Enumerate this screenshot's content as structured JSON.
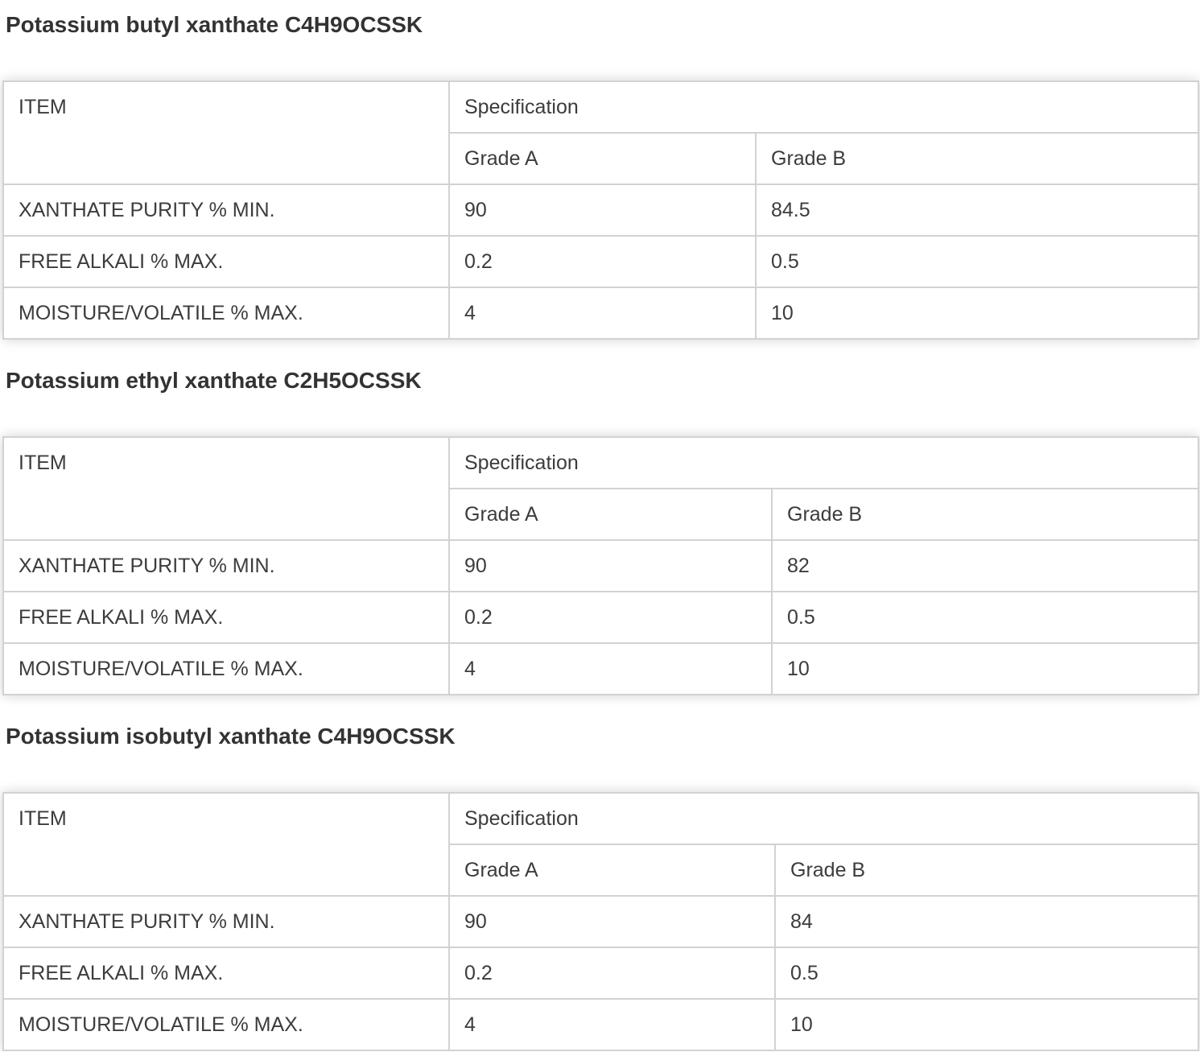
{
  "colors": {
    "border": "#d2d2d2",
    "heading_text": "#333333",
    "cell_text": "#3c3c3c",
    "background": "#ffffff"
  },
  "sections": [
    {
      "heading": "Potassium butyl xanthate C4H9OCSSK",
      "table": {
        "headers": {
          "item": "ITEM",
          "specification": "Specification",
          "grade_a": "Grade A",
          "grade_b": "Grade B"
        },
        "rows": [
          {
            "item": "XANTHATE PURITY % MIN.",
            "grade_a": "90",
            "grade_b": "84.5"
          },
          {
            "item": "FREE ALKALI % MAX.",
            "grade_a": "0.2",
            "grade_b": "0.5"
          },
          {
            "item": "MOISTURE/VOLATILE % MAX.",
            "grade_a": "4",
            "grade_b": "10"
          }
        ]
      }
    },
    {
      "heading": "Potassium ethyl xanthate C2H5OCSSK",
      "table": {
        "headers": {
          "item": "ITEM",
          "specification": "Specification",
          "grade_a": "Grade A",
          "grade_b": "Grade B"
        },
        "rows": [
          {
            "item": "XANTHATE PURITY % MIN.",
            "grade_a": "90",
            "grade_b": "82"
          },
          {
            "item": "FREE ALKALI % MAX.",
            "grade_a": "0.2",
            "grade_b": "0.5"
          },
          {
            "item": "MOISTURE/VOLATILE % MAX.",
            "grade_a": "4",
            "grade_b": "10"
          }
        ]
      }
    },
    {
      "heading": "Potassium isobutyl xanthate C4H9OCSSK",
      "table": {
        "headers": {
          "item": "ITEM",
          "specification": "Specification",
          "grade_a": "Grade A",
          "grade_b": "Grade B"
        },
        "rows": [
          {
            "item": "XANTHATE PURITY % MIN.",
            "grade_a": "90",
            "grade_b": "84"
          },
          {
            "item": "FREE ALKALI % MAX.",
            "grade_a": "0.2",
            "grade_b": "0.5"
          },
          {
            "item": "MOISTURE/VOLATILE % MAX.",
            "grade_a": "4",
            "grade_b": "10"
          }
        ]
      }
    }
  ]
}
